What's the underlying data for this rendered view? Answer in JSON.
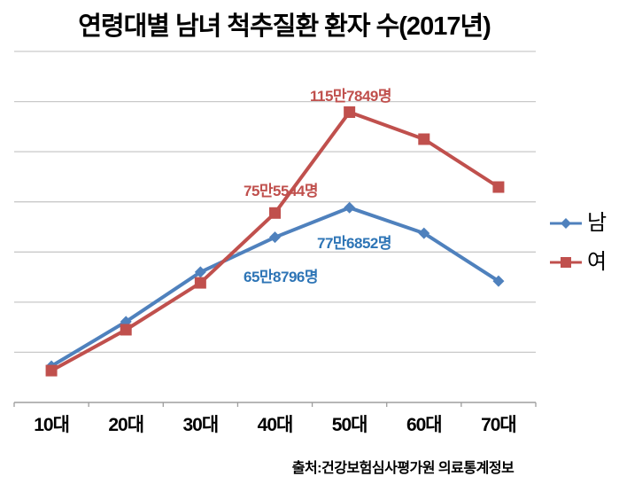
{
  "title": "연령대별 남녀 척추질환 환자 수(2017년)",
  "source": "출처:건강보험심사평가원 의료통계정보",
  "colors": {
    "male_series": "#4f81bd",
    "female_series": "#c0504d",
    "male_label_text": "#2e75b6",
    "female_label_text": "#c0504d",
    "gridline": "#c9c9c9",
    "axis_line": "#9d9d9d",
    "title_text": "#000000"
  },
  "chart_data": {
    "type": "line",
    "categories": [
      "10대",
      "20대",
      "30대",
      "40대",
      "50대",
      "60대",
      "70대"
    ],
    "series": [
      {
        "name": "남",
        "color": "#4f81bd",
        "marker": "diamond",
        "values": [
          145000,
          322000,
          520000,
          658796,
          776852,
          675000,
          484000
        ]
      },
      {
        "name": "여",
        "color": "#c0504d",
        "marker": "square",
        "values": [
          127000,
          290000,
          477000,
          755544,
          1157849,
          1050000,
          859000
        ]
      }
    ],
    "ylim": [
      0,
      1400000
    ],
    "gridline_step": 200000,
    "grid": true,
    "legend_position": "right",
    "y_axis_labels_shown": false
  },
  "data_labels": [
    {
      "text": "115만7849명",
      "series": "여",
      "category": "50대",
      "value": 1157849,
      "color": "#c0504d"
    },
    {
      "text": "75만5544명",
      "series": "여",
      "category": "40대",
      "value": 755544,
      "color": "#c0504d"
    },
    {
      "text": "77만6852명",
      "series": "남",
      "category": "50대",
      "value": 776852,
      "color": "#2e75b6"
    },
    {
      "text": "65만8796명",
      "series": "남",
      "category": "40대",
      "value": 658796,
      "color": "#2e75b6"
    }
  ]
}
